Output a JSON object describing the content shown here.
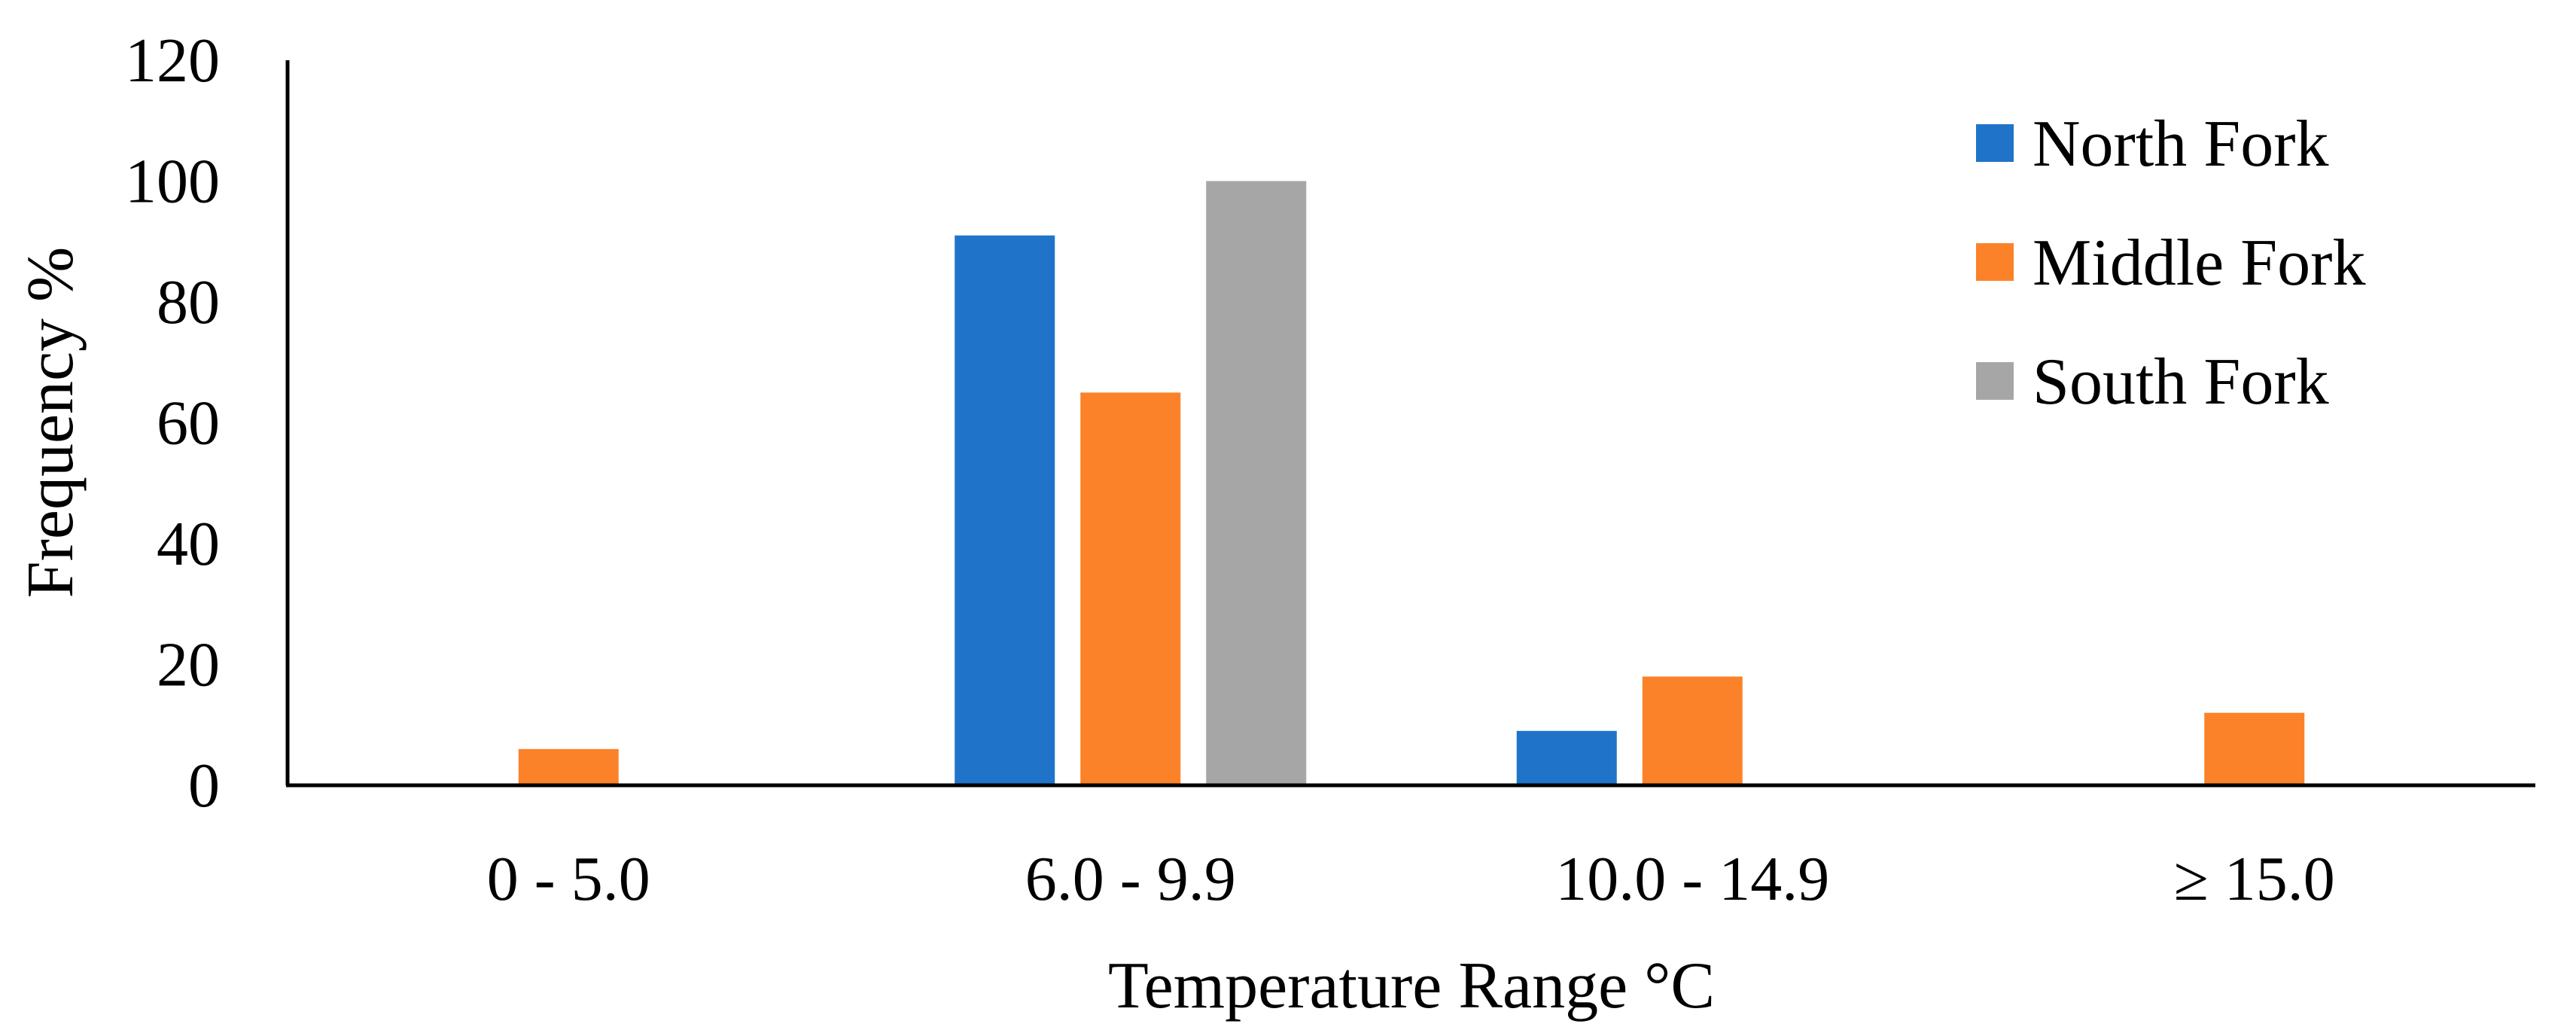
{
  "chart_data": {
    "type": "bar",
    "title": "",
    "xlabel": "Temperature Range °C",
    "ylabel": "Frequency %",
    "ylim": [
      0,
      120
    ],
    "yticks": [
      0,
      20,
      40,
      60,
      80,
      100,
      120
    ],
    "grid": false,
    "legend_position": "top-right",
    "categories": [
      "0 - 5.0",
      "6.0 - 9.9",
      "10.0 - 14.9",
      "≥ 15.0"
    ],
    "series": [
      {
        "name": "North Fork",
        "color": "#1f73c9",
        "values": [
          0,
          91,
          9,
          0
        ]
      },
      {
        "name": "Middle Fork",
        "color": "#fb8229",
        "values": [
          6,
          65,
          18,
          12
        ]
      },
      {
        "name": "South Fork",
        "color": "#a6a6a6",
        "values": [
          0,
          100,
          0,
          0
        ]
      }
    ]
  }
}
